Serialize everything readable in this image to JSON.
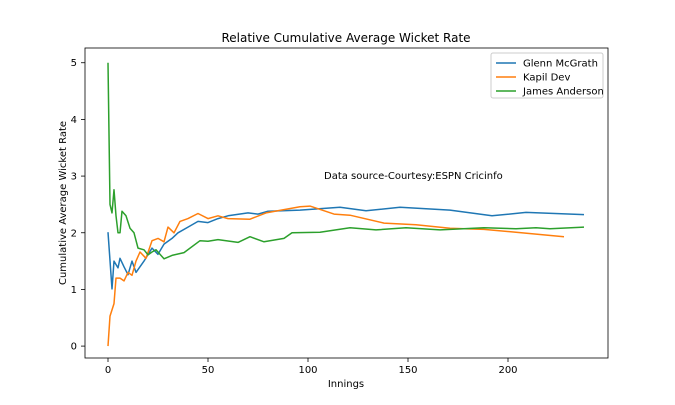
{
  "chart_data": {
    "type": "line",
    "title": "Relative Cumulative Average Wicket Rate",
    "xlabel": "Innings",
    "ylabel": "Cumulative Average Wicket Rate",
    "xlim": [
      -11.5,
      250
    ],
    "ylim": [
      -0.21,
      5.26
    ],
    "xticks": [
      0,
      50,
      100,
      150,
      200
    ],
    "yticks": [
      0,
      1,
      2,
      3,
      4,
      5
    ],
    "grid": false,
    "legend_position": "top-right",
    "annotation": {
      "text": "Data source-Courtesy:ESPN Cricinfo",
      "x": 108,
      "y": 3.0
    },
    "series": [
      {
        "name": "Glenn McGrath",
        "color": "#1f77b4",
        "x": [
          0,
          2,
          3,
          5,
          6,
          8,
          10,
          12,
          14,
          18,
          22,
          25,
          28,
          32,
          35,
          40,
          45,
          50,
          55,
          60,
          70,
          75,
          80,
          96,
          116,
          129,
          146,
          171,
          192,
          209,
          238
        ],
        "y": [
          2.01,
          1.01,
          1.5,
          1.38,
          1.55,
          1.4,
          1.26,
          1.5,
          1.3,
          1.5,
          1.73,
          1.62,
          1.8,
          1.9,
          2.0,
          2.1,
          2.2,
          2.18,
          2.25,
          2.3,
          2.35,
          2.33,
          2.38,
          2.4,
          2.45,
          2.39,
          2.45,
          2.4,
          2.3,
          2.36,
          2.32
        ]
      },
      {
        "name": "Kapil Dev",
        "color": "#ff7f0e",
        "x": [
          0,
          1,
          3,
          4,
          6,
          8,
          10,
          12,
          14,
          16,
          19,
          22,
          25,
          28,
          30,
          33,
          36,
          40,
          45,
          50,
          55,
          60,
          71,
          79,
          96,
          101,
          113,
          121,
          138,
          154,
          171,
          188,
          204,
          228
        ],
        "y": [
          0,
          0.53,
          0.75,
          1.2,
          1.2,
          1.15,
          1.3,
          1.25,
          1.5,
          1.66,
          1.55,
          1.86,
          1.9,
          1.84,
          2.1,
          2.0,
          2.2,
          2.25,
          2.34,
          2.25,
          2.3,
          2.25,
          2.24,
          2.35,
          2.46,
          2.47,
          2.33,
          2.31,
          2.17,
          2.14,
          2.08,
          2.06,
          2.01,
          1.93
        ]
      },
      {
        "name": "James Anderson",
        "color": "#2ca02c",
        "x": [
          0,
          1,
          2,
          3,
          4,
          5,
          6,
          7,
          9,
          11,
          13,
          15,
          18,
          20,
          22,
          24,
          28,
          32,
          38,
          46,
          50,
          55,
          65,
          71,
          78,
          88,
          92,
          106,
          121,
          134,
          149,
          166,
          188,
          204,
          214,
          221,
          238
        ],
        "y": [
          5.0,
          2.5,
          2.35,
          2.76,
          2.3,
          2.0,
          2.0,
          2.38,
          2.3,
          2.08,
          2.0,
          1.73,
          1.7,
          1.61,
          1.66,
          1.7,
          1.54,
          1.6,
          1.65,
          1.86,
          1.85,
          1.88,
          1.83,
          1.93,
          1.84,
          1.9,
          2.0,
          2.01,
          2.09,
          2.05,
          2.09,
          2.05,
          2.09,
          2.07,
          2.09,
          2.07,
          2.1
        ]
      }
    ]
  }
}
